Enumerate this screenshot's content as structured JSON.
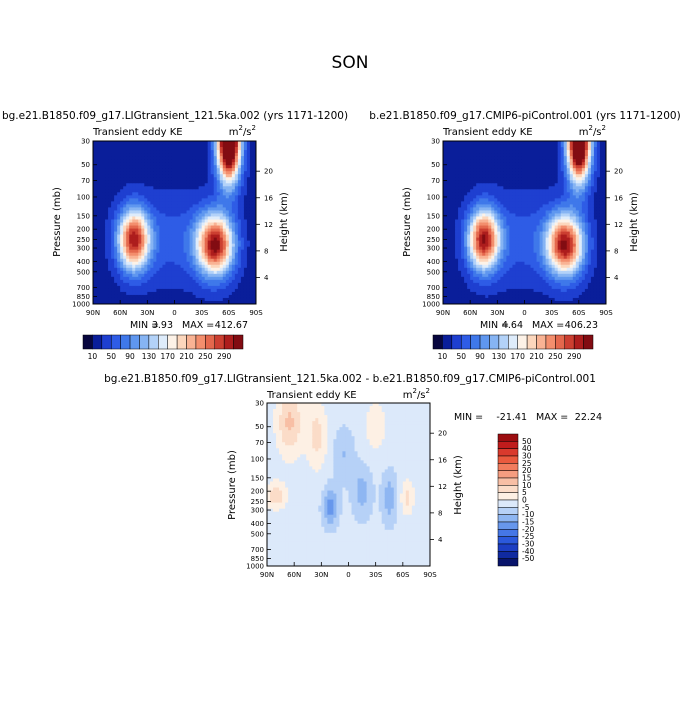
{
  "season_title": "SON",
  "colorbar_top": {
    "labels": [
      "10",
      "50",
      "90",
      "130",
      "170",
      "210",
      "250",
      "290"
    ],
    "colors": [
      "#08063e",
      "#0a1e9a",
      "#1e3fd0",
      "#2e5ce6",
      "#3f78ea",
      "#5f97ef",
      "#86b4f3",
      "#b3d2f8",
      "#deecfb",
      "#fdf2e7",
      "#fcd7bd",
      "#f9b394",
      "#f38e6d",
      "#e4684d",
      "#cc3f31",
      "#ad1d1d",
      "#820c12"
    ]
  },
  "colorbar_diff": {
    "labels": [
      "50",
      "40",
      "30",
      "25",
      "20",
      "15",
      "10",
      "5",
      "0",
      "-5",
      "-10",
      "-15",
      "-20",
      "-25",
      "-30",
      "-40",
      "-50"
    ],
    "colors": [
      "#9c0d10",
      "#c01c1c",
      "#d93a2d",
      "#ea5a3e",
      "#f27c5d",
      "#f59d80",
      "#f8bfa5",
      "#fbdcc8",
      "#fdf0e4",
      "#dce9fa",
      "#b6d1f7",
      "#8eb6f2",
      "#6797ec",
      "#4577e6",
      "#2b59dc",
      "#1c3ec3",
      "#102aa0",
      "#08146b"
    ]
  },
  "chart_data": [
    {
      "type": "contour",
      "title": "bg.e21.B1850.f09_g17.LIGtransient_121.5ka.002 (yrs 1171-1200)",
      "field_label": "Transient eddy KE",
      "units_base": "m",
      "units_exp1": "2",
      "units_mid": "/s",
      "units_exp2": "2",
      "xlabel": "",
      "ylabel": "Pressure (mb)",
      "y2label": "Height (km)",
      "x_ticks": [
        "90N",
        "60N",
        "30N",
        "0",
        "30S",
        "60S",
        "90S"
      ],
      "y_ticks": [
        "30",
        "50",
        "70",
        "100",
        "150",
        "200",
        "250",
        "300",
        "400",
        "500",
        "700",
        "850",
        "1000"
      ],
      "y2_ticks": [
        "20",
        "16",
        "12",
        "8",
        "4"
      ],
      "min_label": "MIN =",
      "min_value": "3.93",
      "max_label": "MAX =",
      "max_value": "412.67",
      "levels": [
        10,
        30,
        50,
        70,
        90,
        110,
        130,
        150,
        170,
        190,
        210,
        230,
        250,
        270,
        290,
        310
      ],
      "features": [
        {
          "lat": -60,
          "lev": 30,
          "amp": 420,
          "sx": 9,
          "sy": 1.2
        },
        {
          "lat": 45,
          "lev": 250,
          "amp": 270,
          "sx": 12,
          "sy": 0.9
        },
        {
          "lat": -45,
          "lev": 280,
          "amp": 285,
          "sx": 14,
          "sy": 0.9
        }
      ]
    },
    {
      "type": "contour",
      "title": "b.e21.B1850.f09_g17.CMIP6-piControl.001 (yrs 1171-1200)",
      "field_label": "Transient eddy KE",
      "units_base": "m",
      "units_exp1": "2",
      "units_mid": "/s",
      "units_exp2": "2",
      "xlabel": "",
      "ylabel": "Pressure (mb)",
      "y2label": "Height (km)",
      "x_ticks": [
        "90N",
        "60N",
        "30N",
        "0",
        "30S",
        "60S",
        "90S"
      ],
      "y_ticks": [
        "30",
        "50",
        "70",
        "100",
        "150",
        "200",
        "250",
        "300",
        "400",
        "500",
        "700",
        "850",
        "1000"
      ],
      "y2_ticks": [
        "20",
        "16",
        "12",
        "8",
        "4"
      ],
      "min_label": "MIN =",
      "min_value": "4.64",
      "max_label": "MAX =",
      "max_value": "406.23",
      "levels": [
        10,
        30,
        50,
        70,
        90,
        110,
        130,
        150,
        170,
        190,
        210,
        230,
        250,
        270,
        290,
        310
      ],
      "features": [
        {
          "lat": -60,
          "lev": 30,
          "amp": 410,
          "sx": 9,
          "sy": 1.2
        },
        {
          "lat": 45,
          "lev": 250,
          "amp": 275,
          "sx": 12,
          "sy": 0.9
        },
        {
          "lat": -45,
          "lev": 280,
          "amp": 280,
          "sx": 14,
          "sy": 0.9
        }
      ]
    },
    {
      "type": "contour",
      "title": "bg.e21.B1850.f09_g17.LIGtransient_121.5ka.002 - b.e21.B1850.f09_g17.CMIP6-piControl.001",
      "field_label": "Transient eddy KE",
      "units_base": "m",
      "units_exp1": "2",
      "units_mid": "/s",
      "units_exp2": "2",
      "xlabel": "",
      "ylabel": "Pressure (mb)",
      "y2label": "Height (km)",
      "x_ticks": [
        "90N",
        "60N",
        "30N",
        "0",
        "30S",
        "60S",
        "90S"
      ],
      "y_ticks": [
        "30",
        "50",
        "70",
        "100",
        "150",
        "200",
        "250",
        "300",
        "400",
        "500",
        "700",
        "850",
        "1000"
      ],
      "y2_ticks": [
        "20",
        "16",
        "12",
        "8",
        "4"
      ],
      "min_label": "MIN =",
      "min_value": "-21.41",
      "max_label": "MAX =",
      "max_value": "22.24",
      "levels": [
        -50,
        -40,
        -30,
        -25,
        -20,
        -15,
        -10,
        -5,
        0,
        5,
        10,
        15,
        20,
        25,
        30,
        40,
        50
      ]
    }
  ]
}
